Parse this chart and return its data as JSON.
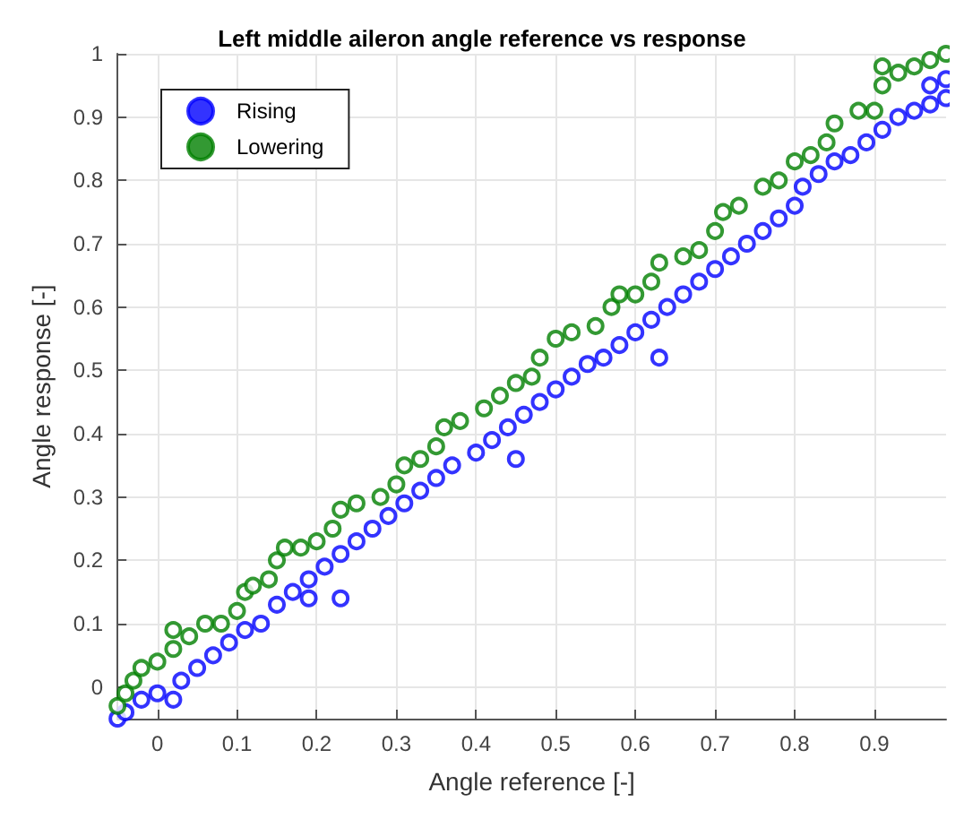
{
  "chart_data": {
    "type": "scatter",
    "title": "Left middle aileron angle reference vs response",
    "xlabel": "Angle reference [-]",
    "ylabel": "Angle response [-]",
    "xlim": [
      -0.05,
      0.99
    ],
    "xticks": [
      0,
      0.1,
      0.2,
      0.3,
      0.4,
      0.5,
      0.6,
      0.7,
      0.8,
      0.9
    ],
    "ylim": [
      -0.05,
      1
    ],
    "yticks": [
      0,
      0.1,
      0.2,
      0.3,
      0.4,
      0.5,
      0.6,
      0.7,
      0.8,
      0.9,
      1
    ],
    "grid": true,
    "legend": "top left",
    "marker": "circle",
    "series": [
      {
        "name": "Rising",
        "color": "#0000ff",
        "x": [
          -0.05,
          -0.04,
          -0.02,
          0,
          0.02,
          0.03,
          0.05,
          0.07,
          0.09,
          0.11,
          0.13,
          0.15,
          0.17,
          0.19,
          0.21,
          0.19,
          0.23,
          0.23,
          0.25,
          0.27,
          0.29,
          0.31,
          0.33,
          0.35,
          0.37,
          0.4,
          0.42,
          0.44,
          0.45,
          0.46,
          0.48,
          0.5,
          0.52,
          0.54,
          0.56,
          0.58,
          0.6,
          0.63,
          0.62,
          0.64,
          0.66,
          0.68,
          0.7,
          0.72,
          0.74,
          0.76,
          0.78,
          0.8,
          0.81,
          0.83,
          0.85,
          0.87,
          0.89,
          0.91,
          0.93,
          0.95,
          0.97,
          0.99,
          0.99,
          0.97
        ],
        "values": [
          -0.05,
          -0.04,
          -0.02,
          -0.01,
          -0.02,
          0.01,
          0.03,
          0.05,
          0.07,
          0.09,
          0.1,
          0.13,
          0.15,
          0.17,
          0.19,
          0.14,
          0.14,
          0.21,
          0.23,
          0.25,
          0.27,
          0.29,
          0.31,
          0.33,
          0.35,
          0.37,
          0.39,
          0.41,
          0.36,
          0.43,
          0.45,
          0.47,
          0.49,
          0.51,
          0.52,
          0.54,
          0.56,
          0.52,
          0.58,
          0.6,
          0.62,
          0.64,
          0.66,
          0.68,
          0.7,
          0.72,
          0.74,
          0.76,
          0.79,
          0.81,
          0.83,
          0.84,
          0.86,
          0.88,
          0.9,
          0.91,
          0.92,
          0.93,
          0.96,
          0.95
        ]
      },
      {
        "name": "Lowering",
        "color": "#008000",
        "x": [
          -0.05,
          -0.04,
          -0.03,
          -0.02,
          0,
          0.02,
          0.02,
          0.04,
          0.06,
          0.08,
          0.1,
          0.11,
          0.12,
          0.14,
          0.15,
          0.16,
          0.18,
          0.2,
          0.22,
          0.23,
          0.25,
          0.28,
          0.3,
          0.31,
          0.33,
          0.35,
          0.36,
          0.38,
          0.41,
          0.43,
          0.45,
          0.47,
          0.48,
          0.5,
          0.52,
          0.55,
          0.57,
          0.58,
          0.6,
          0.62,
          0.63,
          0.66,
          0.68,
          0.7,
          0.71,
          0.73,
          0.76,
          0.78,
          0.8,
          0.82,
          0.84,
          0.85,
          0.88,
          0.9,
          0.91,
          0.91,
          0.93,
          0.95,
          0.97,
          0.99
        ],
        "values": [
          -0.03,
          -0.01,
          0.01,
          0.03,
          0.04,
          0.06,
          0.09,
          0.08,
          0.1,
          0.1,
          0.12,
          0.15,
          0.16,
          0.17,
          0.2,
          0.22,
          0.22,
          0.23,
          0.25,
          0.28,
          0.29,
          0.3,
          0.32,
          0.35,
          0.36,
          0.38,
          0.41,
          0.42,
          0.44,
          0.46,
          0.48,
          0.49,
          0.52,
          0.55,
          0.56,
          0.57,
          0.6,
          0.62,
          0.62,
          0.64,
          0.67,
          0.68,
          0.69,
          0.72,
          0.75,
          0.76,
          0.79,
          0.8,
          0.83,
          0.84,
          0.86,
          0.89,
          0.91,
          0.91,
          0.95,
          0.98,
          0.97,
          0.98,
          0.99,
          1
        ]
      }
    ]
  }
}
